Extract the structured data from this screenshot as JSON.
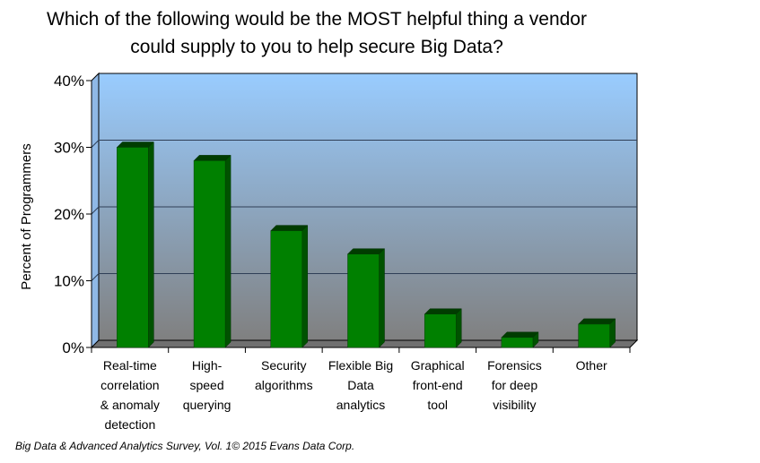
{
  "chart_data": {
    "type": "bar",
    "title_lines": [
      "Which of the following would be the MOST helpful thing a vendor",
      "could supply to you to help secure Big Data?"
    ],
    "ylabel": "Percent of Programmers",
    "xlabel": "",
    "ylim": [
      0,
      40
    ],
    "yticks": [
      "0%",
      "10%",
      "20%",
      "30%",
      "40%"
    ],
    "categories": [
      [
        "Real-time",
        "correlation",
        "& anomaly",
        "detection"
      ],
      [
        "High-",
        "speed",
        "querying"
      ],
      [
        "Security",
        "algorithms"
      ],
      [
        "Flexible Big",
        "Data",
        "analytics"
      ],
      [
        "Graphical",
        "front-end",
        "tool"
      ],
      [
        "Forensics",
        "for deep",
        "visibility"
      ],
      [
        "Other"
      ]
    ],
    "values": [
      30,
      28,
      17.5,
      14,
      5,
      1.5,
      3.5
    ],
    "grid": true,
    "legend": "none",
    "colors": {
      "bar_front": "#008000",
      "bar_side": "#005200",
      "bar_top": "#003c00",
      "plot_top": "#99ccff",
      "plot_bottom": "#808080",
      "floor": "#707070",
      "gridline": "#2f3f56"
    }
  },
  "source": "Big Data & Advanced Analytics Survey, Vol. 1© 2015 Evans Data Corp."
}
